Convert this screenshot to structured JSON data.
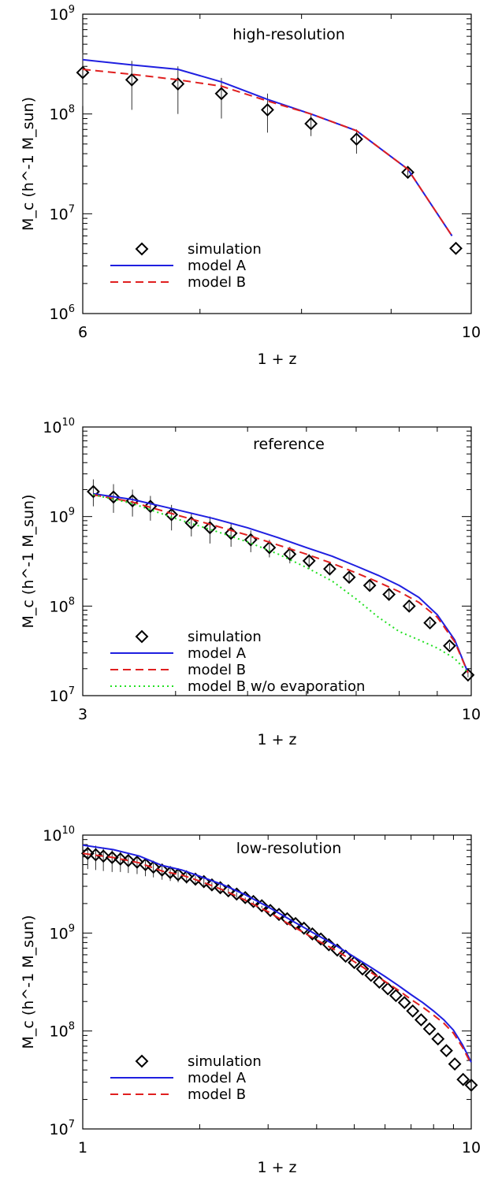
{
  "chart_data": [
    {
      "type": "line",
      "scale": "log-log",
      "title": "high-resolution",
      "xlabel": "1 + z",
      "ylabel": "M_c (h^-1 M_sun)",
      "xlim": [
        6,
        10
      ],
      "ylim": [
        1000000,
        1000000000
      ],
      "xticks": [
        6,
        10
      ],
      "yticks": [
        1000000,
        10000000,
        100000000,
        1000000000
      ],
      "legend": {
        "position": "bottom-left",
        "entries": [
          "simulation",
          "model A",
          "model B"
        ]
      },
      "series": [
        {
          "name": "simulation",
          "style": "markers-errorbars",
          "x": [
            6.0,
            6.4,
            6.8,
            7.2,
            7.65,
            8.1,
            8.6,
            9.2,
            9.8
          ],
          "y": [
            260000000.0,
            220000000.0,
            200000000.0,
            160000000.0,
            110000000.0,
            80000000.0,
            56000000.0,
            26000000.0,
            4500000.0
          ],
          "err_low": [
            120000000.0,
            110000000.0,
            100000000.0,
            90000000.0,
            65000000.0,
            60000000.0,
            40000000.0,
            23000000.0,
            4500000.0
          ],
          "err_high": [
            410000000.0,
            340000000.0,
            300000000.0,
            230000000.0,
            160000000.0,
            100000000.0,
            70000000.0,
            29000000.0,
            4500000.0
          ]
        },
        {
          "name": "model A",
          "style": "solid",
          "x": [
            6.0,
            6.4,
            6.8,
            7.2,
            7.65,
            8.1,
            8.6,
            9.2,
            9.75
          ],
          "y": [
            350000000.0,
            310000000.0,
            280000000.0,
            210000000.0,
            140000000.0,
            100000000.0,
            68000000.0,
            28000000.0,
            6000000.0
          ]
        },
        {
          "name": "model B",
          "style": "dashed",
          "x": [
            6.0,
            6.4,
            6.8,
            7.2,
            7.65,
            8.1,
            8.6,
            9.2,
            9.75
          ],
          "y": [
            280000000.0,
            250000000.0,
            220000000.0,
            190000000.0,
            135000000.0,
            100000000.0,
            68000000.0,
            28000000.0,
            6000000.0
          ]
        }
      ]
    },
    {
      "type": "line",
      "scale": "log-log",
      "title": "reference",
      "xlabel": "1 + z",
      "ylabel": "M_c (h^-1 M_sun)",
      "xlim": [
        3,
        10
      ],
      "ylim": [
        10000000,
        10000000000
      ],
      "xticks": [
        3,
        10
      ],
      "yticks": [
        10000000,
        100000000,
        1000000000,
        10000000000
      ],
      "legend": {
        "position": "bottom-left",
        "entries": [
          "simulation",
          "model A",
          "model B",
          "model B w/o evaporation"
        ]
      },
      "series": [
        {
          "name": "simulation",
          "style": "markers-errorbars",
          "x": [
            3.1,
            3.3,
            3.5,
            3.7,
            3.95,
            4.2,
            4.45,
            4.75,
            5.05,
            5.35,
            5.7,
            6.05,
            6.45,
            6.85,
            7.3,
            7.75,
            8.25,
            8.8,
            9.35,
            9.9
          ],
          "y": [
            1900000000.0,
            1650000000.0,
            1500000000.0,
            1300000000.0,
            1050000000.0,
            850000000.0,
            750000000.0,
            650000000.0,
            550000000.0,
            450000000.0,
            380000000.0,
            320000000.0,
            260000000.0,
            210000000.0,
            170000000.0,
            135000000.0,
            100000000.0,
            65000000.0,
            36000000.0,
            17000000.0
          ],
          "err_low": [
            1300000000.0,
            1100000000.0,
            1000000000.0,
            900000000.0,
            700000000.0,
            600000000.0,
            500000000.0,
            460000000.0,
            400000000.0,
            350000000.0,
            300000000.0,
            260000000.0,
            220000000.0,
            180000000.0,
            150000000.0,
            120000000.0,
            90000000.0,
            60000000.0,
            33000000.0,
            16000000.0
          ],
          "err_high": [
            2600000000.0,
            2300000000.0,
            2000000000.0,
            1700000000.0,
            1350000000.0,
            1100000000.0,
            1000000000.0,
            850000000.0,
            700000000.0,
            550000000.0,
            460000000.0,
            380000000.0,
            300000000.0,
            240000000.0,
            190000000.0,
            150000000.0,
            110000000.0,
            70000000.0,
            39000000.0,
            18000000.0
          ]
        },
        {
          "name": "model A",
          "style": "solid",
          "x": [
            3.1,
            3.5,
            4.0,
            4.5,
            5.0,
            5.5,
            6.0,
            6.5,
            7.0,
            7.5,
            8.0,
            8.5,
            9.0,
            9.5,
            9.9
          ],
          "y": [
            1800000000.0,
            1550000000.0,
            1200000000.0,
            950000000.0,
            750000000.0,
            580000000.0,
            450000000.0,
            360000000.0,
            280000000.0,
            220000000.0,
            170000000.0,
            125000000.0,
            80000000.0,
            42000000.0,
            18000000.0
          ]
        },
        {
          "name": "model B",
          "style": "dashed",
          "x": [
            3.1,
            3.5,
            4.0,
            4.5,
            5.0,
            5.5,
            6.0,
            6.5,
            7.0,
            7.5,
            8.0,
            8.5,
            9.0,
            9.5,
            9.9
          ],
          "y": [
            1750000000.0,
            1450000000.0,
            1050000000.0,
            800000000.0,
            620000000.0,
            480000000.0,
            380000000.0,
            300000000.0,
            235000000.0,
            185000000.0,
            145000000.0,
            110000000.0,
            75000000.0,
            40000000.0,
            18000000.0
          ]
        },
        {
          "name": "model B w/o evaporation",
          "style": "dotted",
          "x": [
            3.1,
            3.5,
            4.0,
            4.5,
            5.0,
            5.5,
            6.0,
            6.5,
            7.0,
            7.5,
            8.0,
            8.5,
            9.0,
            9.5,
            9.9
          ],
          "y": [
            1750000000.0,
            1400000000.0,
            950000000.0,
            700000000.0,
            520000000.0,
            380000000.0,
            270000000.0,
            190000000.0,
            120000000.0,
            75000000.0,
            52000000.0,
            42000000.0,
            34000000.0,
            26000000.0,
            18000000.0
          ]
        }
      ]
    },
    {
      "type": "line",
      "scale": "log-log",
      "title": "low-resolution",
      "xlabel": "1 + z",
      "ylabel": "M_c (h^-1 M_sun)",
      "xlim": [
        1,
        10
      ],
      "ylim": [
        10000000,
        10000000000
      ],
      "xticks": [
        1,
        10
      ],
      "yticks": [
        10000000,
        100000000,
        1000000000,
        10000000000
      ],
      "legend": {
        "position": "bottom-left",
        "entries": [
          "simulation",
          "model A",
          "model B"
        ]
      },
      "series": [
        {
          "name": "simulation",
          "style": "markers-errorbars",
          "x": [
            1.03,
            1.08,
            1.13,
            1.19,
            1.25,
            1.31,
            1.38,
            1.45,
            1.52,
            1.6,
            1.68,
            1.76,
            1.85,
            1.95,
            2.05,
            2.15,
            2.26,
            2.37,
            2.49,
            2.62,
            2.75,
            2.89,
            3.04,
            3.2,
            3.36,
            3.53,
            3.71,
            3.9,
            4.1,
            4.3,
            4.52,
            4.75,
            5.0,
            5.25,
            5.52,
            5.8,
            6.1,
            6.4,
            6.73,
            7.07,
            7.43,
            7.81,
            8.21,
            8.63,
            9.07,
            9.53,
            10.0
          ],
          "y": [
            6500000000.0,
            6300000000.0,
            6100000000.0,
            5900000000.0,
            5700000000.0,
            5500000000.0,
            5300000000.0,
            5000000000.0,
            4700000000.0,
            4400000000.0,
            4150000000.0,
            3950000000.0,
            3750000000.0,
            3550000000.0,
            3350000000.0,
            3100000000.0,
            2900000000.0,
            2700000000.0,
            2500000000.0,
            2300000000.0,
            2100000000.0,
            1900000000.0,
            1700000000.0,
            1550000000.0,
            1400000000.0,
            1250000000.0,
            1120000000.0,
            980000000.0,
            870000000.0,
            760000000.0,
            670000000.0,
            580000000.0,
            500000000.0,
            430000000.0,
            370000000.0,
            315000000.0,
            270000000.0,
            230000000.0,
            195000000.0,
            160000000.0,
            130000000.0,
            105000000.0,
            83000000.0,
            63000000.0,
            46000000.0,
            32000000.0,
            28000000.0
          ],
          "err_low": [
            4500000000.0,
            4400000000.0,
            4300000000.0,
            4200000000.0,
            4200000000.0,
            4100000000.0,
            4000000000.0,
            3800000000.0,
            3700000000.0,
            3500000000.0,
            3400000000.0,
            3300000000.0,
            3200000000.0,
            3100000000.0,
            2900000000.0,
            2800000000.0,
            2600000000.0,
            2500000000.0,
            2300000000.0,
            2200000000.0,
            2000000000.0,
            1800000000.0,
            1700000000.0,
            1550000000.0,
            1400000000.0,
            1250000000.0,
            1120000000.0,
            980000000.0,
            870000000.0,
            760000000.0,
            670000000.0,
            580000000.0,
            500000000.0,
            430000000.0,
            370000000.0,
            315000000.0,
            270000000.0,
            230000000.0,
            195000000.0,
            160000000.0,
            130000000.0,
            105000000.0,
            83000000.0,
            63000000.0,
            46000000.0,
            32000000.0,
            28000000.0
          ],
          "err_high": [
            8000000000.0,
            7800000000.0,
            7500000000.0,
            7200000000.0,
            6800000000.0,
            6500000000.0,
            6200000000.0,
            5800000000.0,
            5400000000.0,
            5000000000.0,
            4700000000.0,
            4400000000.0,
            4100000000.0,
            3800000000.0,
            3600000000.0,
            3300000000.0,
            3100000000.0,
            2850000000.0,
            2600000000.0,
            2300000000.0,
            2100000000.0,
            1900000000.0,
            1700000000.0,
            1550000000.0,
            1400000000.0,
            1250000000.0,
            1120000000.0,
            980000000.0,
            870000000.0,
            760000000.0,
            670000000.0,
            580000000.0,
            500000000.0,
            430000000.0,
            370000000.0,
            315000000.0,
            270000000.0,
            230000000.0,
            195000000.0,
            160000000.0,
            130000000.0,
            105000000.0,
            83000000.0,
            63000000.0,
            46000000.0,
            32000000.0,
            28000000.0
          ]
        },
        {
          "name": "model A",
          "style": "solid",
          "x": [
            1.0,
            1.2,
            1.4,
            1.6,
            1.8,
            2.0,
            2.3,
            2.6,
            3.0,
            3.5,
            4.0,
            4.5,
            5.0,
            5.5,
            6.0,
            6.5,
            7.0,
            7.5,
            8.0,
            8.5,
            9.0,
            9.5,
            10.0
          ],
          "y": [
            7900000000.0,
            7100000000.0,
            6100000000.0,
            4900000000.0,
            4400000000.0,
            3800000000.0,
            3100000000.0,
            2500000000.0,
            1850000000.0,
            1300000000.0,
            960000000.0,
            740000000.0,
            570000000.0,
            450000000.0,
            360000000.0,
            290000000.0,
            235000000.0,
            195000000.0,
            160000000.0,
            130000000.0,
            102000000.0,
            72000000.0,
            48000000.0
          ]
        },
        {
          "name": "model B",
          "style": "dashed",
          "x": [
            1.0,
            1.2,
            1.4,
            1.6,
            1.8,
            2.0,
            2.3,
            2.6,
            3.0,
            3.5,
            4.0,
            4.5,
            5.0,
            5.5,
            6.0,
            6.5,
            7.0,
            7.5,
            8.0,
            8.5,
            9.0,
            9.5,
            10.0
          ],
          "y": [
            6500000000.0,
            5900000000.0,
            5200000000.0,
            4300000000.0,
            3900000000.0,
            3400000000.0,
            2750000000.0,
            2200000000.0,
            1650000000.0,
            1150000000.0,
            850000000.0,
            660000000.0,
            510000000.0,
            400000000.0,
            320000000.0,
            260000000.0,
            210000000.0,
            175000000.0,
            145000000.0,
            120000000.0,
            95000000.0,
            68000000.0,
            46000000.0
          ]
        }
      ]
    }
  ],
  "colors": {
    "simulation": "#000000",
    "model A": "#1f1fe0",
    "model B": "#e01f1f",
    "model B w/o evaporation": "#22e022",
    "errorbar": "#333333",
    "axes": "#000000"
  }
}
